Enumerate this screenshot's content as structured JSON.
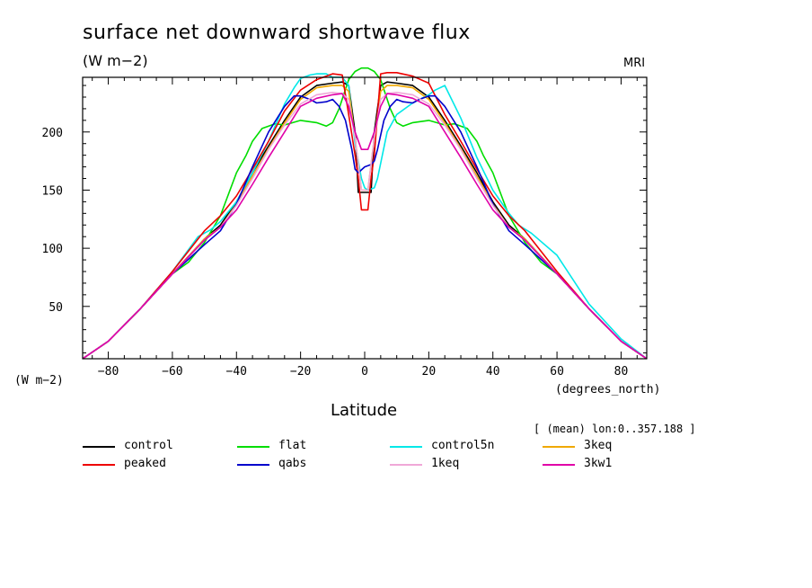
{
  "header": {
    "title": "surface net downward shortwave flux",
    "units": "(W m−2)",
    "source": "MRI",
    "y_units": "(W m−2)",
    "x_units": "(degrees_north)",
    "xlabel": "Latitude",
    "region": "[ (mean) lon:0..357.188 ]"
  },
  "chart_data": {
    "type": "line",
    "title": "surface net downward shortwave flux",
    "ylabel": "(W m−2)",
    "xlabel": "Latitude",
    "xlim": [
      -88,
      88
    ],
    "ylim": [
      5,
      247
    ],
    "xticks": [
      -80,
      -60,
      -40,
      -20,
      0,
      20,
      40,
      60,
      80
    ],
    "xtick_labels": [
      "−80",
      "−60",
      "−40",
      "−20",
      "0",
      "20",
      "40",
      "60",
      "80"
    ],
    "yticks": [
      50,
      100,
      150,
      200
    ],
    "ytick_labels": [
      "50",
      "100",
      "150",
      "200"
    ],
    "grid": false,
    "legend_position": "bottom",
    "series": [
      {
        "name": "control",
        "color": "#000000",
        "x": [
          -88,
          -80,
          -70,
          -60,
          -50,
          -45,
          -40,
          -35,
          -30,
          -25,
          -20,
          -15,
          -10,
          -7,
          -5,
          -3,
          -2,
          2,
          3,
          5,
          7,
          10,
          15,
          20,
          25,
          30,
          35,
          40,
          45,
          50,
          60,
          70,
          80,
          88
        ],
        "y": [
          5,
          20,
          48,
          78,
          108,
          120,
          140,
          165,
          188,
          210,
          230,
          240,
          242,
          243,
          240,
          200,
          148,
          148,
          200,
          240,
          243,
          242,
          240,
          230,
          210,
          188,
          165,
          140,
          120,
          108,
          78,
          48,
          20,
          5
        ]
      },
      {
        "name": "flat",
        "color": "#00dd00",
        "x": [
          -88,
          -80,
          -70,
          -60,
          -55,
          -50,
          -45,
          -40,
          -37,
          -35,
          -32,
          -28,
          -25,
          -20,
          -15,
          -12,
          -10,
          -8,
          -5,
          -3,
          -1,
          1,
          3,
          5,
          8,
          10,
          12,
          15,
          20,
          25,
          28,
          32,
          35,
          37,
          40,
          45,
          50,
          55,
          60,
          70,
          80,
          88
        ],
        "y": [
          5,
          20,
          48,
          78,
          88,
          105,
          128,
          165,
          180,
          192,
          203,
          207,
          206,
          210,
          208,
          205,
          208,
          220,
          245,
          252,
          255,
          255,
          252,
          245,
          220,
          208,
          205,
          208,
          210,
          206,
          207,
          203,
          192,
          180,
          165,
          128,
          105,
          88,
          78,
          48,
          20,
          5
        ]
      },
      {
        "name": "control5n",
        "color": "#00e8e8",
        "x": [
          -88,
          -80,
          -70,
          -60,
          -52,
          -48,
          -45,
          -40,
          -35,
          -30,
          -25,
          -22,
          -20,
          -17,
          -15,
          -12,
          -10,
          -7,
          -5,
          -3,
          -1,
          0,
          1,
          3,
          4,
          7,
          10,
          15,
          20,
          22,
          25,
          30,
          35,
          40,
          45,
          48,
          52,
          60,
          70,
          80,
          88
        ],
        "y": [
          5,
          20,
          48,
          80,
          110,
          116,
          123,
          140,
          165,
          192,
          224,
          238,
          246,
          249,
          250,
          250,
          247,
          247,
          240,
          190,
          160,
          152,
          150,
          152,
          160,
          200,
          215,
          225,
          232,
          236,
          240,
          212,
          178,
          150,
          130,
          120,
          113,
          94,
          52,
          22,
          5
        ]
      },
      {
        "name": "3keq",
        "color": "#f0a800",
        "x": [
          -88,
          -80,
          -70,
          -60,
          -50,
          -45,
          -40,
          -35,
          -30,
          -25,
          -20,
          -15,
          -10,
          -7,
          -5,
          -3,
          -1,
          1,
          3,
          5,
          7,
          10,
          15,
          20,
          25,
          30,
          35,
          40,
          45,
          50,
          60,
          70,
          80,
          88
        ],
        "y": [
          5,
          20,
          48,
          78,
          108,
          118,
          138,
          162,
          186,
          208,
          228,
          238,
          240,
          240,
          235,
          195,
          150,
          150,
          195,
          235,
          240,
          240,
          238,
          228,
          208,
          186,
          162,
          138,
          118,
          108,
          78,
          48,
          20,
          5
        ]
      },
      {
        "name": "peaked",
        "color": "#ee0000",
        "x": [
          -88,
          -80,
          -70,
          -60,
          -50,
          -45,
          -40,
          -35,
          -30,
          -25,
          -20,
          -15,
          -10,
          -7,
          -5,
          -3,
          -2,
          -1,
          1,
          2,
          3,
          5,
          7,
          10,
          15,
          20,
          25,
          30,
          35,
          40,
          45,
          50,
          60,
          70,
          80,
          88
        ],
        "y": [
          5,
          20,
          48,
          80,
          115,
          128,
          145,
          168,
          192,
          218,
          236,
          245,
          250,
          249,
          215,
          180,
          160,
          133,
          133,
          160,
          180,
          250,
          251,
          251,
          248,
          242,
          215,
          192,
          168,
          145,
          128,
          115,
          80,
          48,
          20,
          5
        ]
      },
      {
        "name": "qabs",
        "color": "#0000cc",
        "x": [
          -88,
          -80,
          -70,
          -60,
          -50,
          -45,
          -40,
          -35,
          -30,
          -25,
          -22,
          -20,
          -17,
          -15,
          -12,
          -10,
          -8,
          -6,
          -4,
          -3,
          -2,
          0,
          2,
          3,
          4,
          6,
          8,
          10,
          12,
          15,
          17,
          20,
          22,
          25,
          30,
          35,
          40,
          45,
          50,
          60,
          70,
          80,
          88
        ],
        "y": [
          5,
          20,
          48,
          78,
          103,
          115,
          138,
          170,
          200,
          222,
          231,
          231,
          228,
          225,
          226,
          228,
          222,
          210,
          185,
          168,
          165,
          170,
          172,
          175,
          185,
          210,
          222,
          228,
          226,
          225,
          228,
          231,
          231,
          222,
          200,
          170,
          138,
          115,
          103,
          78,
          48,
          20,
          5
        ]
      },
      {
        "name": "1keq",
        "color": "#f0a8d8",
        "x": [
          -88,
          -80,
          -70,
          -60,
          -50,
          -45,
          -40,
          -35,
          -30,
          -25,
          -20,
          -15,
          -10,
          -7,
          -5,
          -3,
          -1,
          1,
          3,
          5,
          7,
          10,
          15,
          20,
          25,
          30,
          35,
          40,
          45,
          50,
          60,
          70,
          80,
          88
        ],
        "y": [
          5,
          20,
          48,
          78,
          107,
          118,
          137,
          160,
          185,
          206,
          224,
          232,
          234,
          233,
          228,
          195,
          150,
          150,
          195,
          228,
          233,
          234,
          232,
          224,
          206,
          185,
          160,
          137,
          118,
          107,
          78,
          48,
          20,
          5
        ]
      },
      {
        "name": "3kw1",
        "color": "#e000a8",
        "x": [
          -88,
          -80,
          -70,
          -60,
          -50,
          -45,
          -40,
          -35,
          -30,
          -25,
          -20,
          -15,
          -10,
          -7,
          -5,
          -3,
          -1,
          1,
          3,
          5,
          7,
          10,
          15,
          20,
          25,
          30,
          35,
          40,
          45,
          50,
          60,
          70,
          80,
          88
        ],
        "y": [
          5,
          20,
          48,
          78,
          107,
          118,
          133,
          155,
          178,
          200,
          222,
          229,
          232,
          233,
          222,
          200,
          185,
          185,
          200,
          222,
          233,
          232,
          229,
          222,
          200,
          178,
          155,
          133,
          118,
          107,
          78,
          48,
          20,
          5
        ]
      }
    ]
  },
  "legend": [
    {
      "label": "control",
      "color": "#000000"
    },
    {
      "label": "flat",
      "color": "#00dd00"
    },
    {
      "label": "control5n",
      "color": "#00e8e8"
    },
    {
      "label": "3keq",
      "color": "#f0a800"
    },
    {
      "label": "peaked",
      "color": "#ee0000"
    },
    {
      "label": "qabs",
      "color": "#0000cc"
    },
    {
      "label": "1keq",
      "color": "#f0a8d8"
    },
    {
      "label": "3kw1",
      "color": "#e000a8"
    }
  ]
}
